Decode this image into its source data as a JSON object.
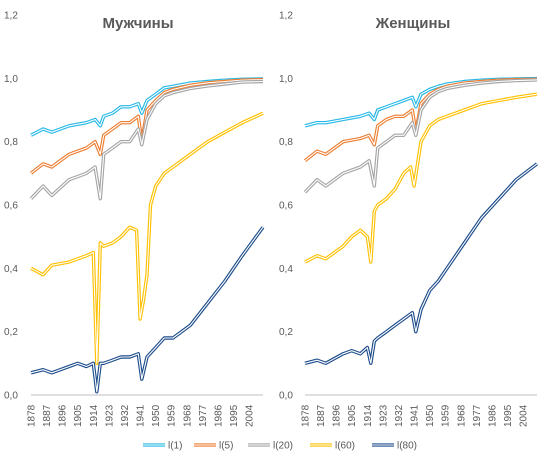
{
  "chart_data": {
    "type": "line",
    "legend_position": "bottom",
    "grid": false,
    "ylim": [
      0,
      1.2
    ],
    "yticks": [
      "0,0",
      "0,2",
      "0,4",
      "0,6",
      "0,8",
      "1,0",
      "1,2"
    ],
    "x_tick_labels": [
      "1878",
      "1887",
      "1896",
      "1905",
      "1914",
      "1923",
      "1932",
      "1941",
      "1950",
      "1959",
      "1968",
      "1977",
      "1986",
      "1995",
      "2004"
    ],
    "x_range": [
      1878,
      2012
    ],
    "series_meta": [
      {
        "name": "l(1)",
        "color": "#26B8E6"
      },
      {
        "name": "l(5)",
        "color": "#ED7D31"
      },
      {
        "name": "l(20)",
        "color": "#A5A5A5"
      },
      {
        "name": "l(60)",
        "color": "#FFC000"
      },
      {
        "name": "l(80)",
        "color": "#1F4E8C"
      }
    ],
    "panels": [
      {
        "title": "Мужчины",
        "series": [
          {
            "name": "l(1)",
            "x": [
              1878,
              1885,
              1890,
              1900,
              1910,
              1915,
              1918,
              1920,
              1925,
              1930,
              1935,
              1940,
              1942,
              1945,
              1950,
              1955,
              1960,
              1970,
              1980,
              1990,
              2000,
              2012
            ],
            "y": [
              0.82,
              0.84,
              0.83,
              0.85,
              0.86,
              0.87,
              0.85,
              0.88,
              0.89,
              0.91,
              0.91,
              0.92,
              0.89,
              0.93,
              0.95,
              0.97,
              0.975,
              0.985,
              0.99,
              0.994,
              0.997,
              0.998
            ]
          },
          {
            "name": "l(5)",
            "x": [
              1878,
              1885,
              1890,
              1900,
              1910,
              1915,
              1918,
              1920,
              1925,
              1930,
              1935,
              1940,
              1942,
              1945,
              1950,
              1955,
              1960,
              1970,
              1980,
              1990,
              2000,
              2012
            ],
            "y": [
              0.7,
              0.73,
              0.72,
              0.76,
              0.78,
              0.8,
              0.76,
              0.82,
              0.84,
              0.86,
              0.86,
              0.88,
              0.8,
              0.9,
              0.93,
              0.955,
              0.965,
              0.978,
              0.986,
              0.99,
              0.994,
              0.996
            ]
          },
          {
            "name": "l(20)",
            "x": [
              1878,
              1885,
              1890,
              1900,
              1910,
              1915,
              1918,
              1920,
              1925,
              1930,
              1935,
              1940,
              1942,
              1945,
              1950,
              1955,
              1960,
              1970,
              1980,
              1990,
              2000,
              2012
            ],
            "y": [
              0.62,
              0.66,
              0.63,
              0.68,
              0.7,
              0.72,
              0.62,
              0.76,
              0.78,
              0.8,
              0.8,
              0.84,
              0.79,
              0.87,
              0.92,
              0.945,
              0.955,
              0.968,
              0.976,
              0.982,
              0.988,
              0.99
            ]
          },
          {
            "name": "l(60)",
            "x": [
              1878,
              1885,
              1890,
              1900,
              1905,
              1910,
              1914,
              1916,
              1918,
              1920,
              1925,
              1930,
              1935,
              1939,
              1941,
              1943,
              1945,
              1947,
              1950,
              1955,
              1960,
              1970,
              1980,
              1990,
              2000,
              2012
            ],
            "y": [
              0.4,
              0.38,
              0.41,
              0.42,
              0.43,
              0.44,
              0.45,
              0.1,
              0.48,
              0.47,
              0.48,
              0.5,
              0.53,
              0.52,
              0.24,
              0.3,
              0.38,
              0.6,
              0.66,
              0.7,
              0.72,
              0.76,
              0.8,
              0.83,
              0.86,
              0.89
            ]
          },
          {
            "name": "l(80)",
            "x": [
              1878,
              1885,
              1890,
              1900,
              1905,
              1910,
              1914,
              1916,
              1918,
              1920,
              1925,
              1930,
              1935,
              1940,
              1942,
              1945,
              1950,
              1955,
              1960,
              1970,
              1980,
              1990,
              2000,
              2012
            ],
            "y": [
              0.07,
              0.08,
              0.07,
              0.09,
              0.1,
              0.09,
              0.1,
              0.01,
              0.1,
              0.1,
              0.11,
              0.12,
              0.12,
              0.13,
              0.05,
              0.12,
              0.15,
              0.18,
              0.18,
              0.22,
              0.29,
              0.36,
              0.44,
              0.53
            ]
          }
        ]
      },
      {
        "title": "Женщины",
        "series": [
          {
            "name": "l(1)",
            "x": [
              1878,
              1885,
              1890,
              1900,
              1910,
              1915,
              1918,
              1920,
              1925,
              1930,
              1935,
              1940,
              1942,
              1945,
              1950,
              1955,
              1960,
              1970,
              1980,
              1990,
              2000,
              2012
            ],
            "y": [
              0.85,
              0.86,
              0.86,
              0.87,
              0.88,
              0.89,
              0.87,
              0.9,
              0.91,
              0.92,
              0.93,
              0.94,
              0.91,
              0.95,
              0.965,
              0.975,
              0.982,
              0.99,
              0.994,
              0.997,
              0.998,
              0.999
            ]
          },
          {
            "name": "l(5)",
            "x": [
              1878,
              1885,
              1890,
              1900,
              1910,
              1915,
              1918,
              1920,
              1925,
              1930,
              1935,
              1940,
              1942,
              1945,
              1950,
              1955,
              1960,
              1970,
              1980,
              1990,
              2000,
              2012
            ],
            "y": [
              0.74,
              0.77,
              0.76,
              0.8,
              0.81,
              0.82,
              0.79,
              0.85,
              0.87,
              0.88,
              0.88,
              0.9,
              0.83,
              0.92,
              0.95,
              0.965,
              0.975,
              0.985,
              0.99,
              0.994,
              0.996,
              0.997
            ]
          },
          {
            "name": "l(20)",
            "x": [
              1878,
              1885,
              1890,
              1900,
              1910,
              1915,
              1918,
              1920,
              1925,
              1930,
              1935,
              1940,
              1942,
              1945,
              1950,
              1955,
              1960,
              1970,
              1980,
              1990,
              2000,
              2012
            ],
            "y": [
              0.64,
              0.68,
              0.66,
              0.7,
              0.72,
              0.74,
              0.66,
              0.78,
              0.8,
              0.82,
              0.82,
              0.86,
              0.82,
              0.9,
              0.94,
              0.958,
              0.968,
              0.978,
              0.985,
              0.99,
              0.993,
              0.995
            ]
          },
          {
            "name": "l(60)",
            "x": [
              1878,
              1885,
              1890,
              1900,
              1905,
              1910,
              1914,
              1916,
              1918,
              1920,
              1925,
              1930,
              1935,
              1939,
              1941,
              1945,
              1950,
              1955,
              1960,
              1970,
              1980,
              1990,
              2000,
              2012
            ],
            "y": [
              0.42,
              0.44,
              0.43,
              0.47,
              0.5,
              0.52,
              0.5,
              0.42,
              0.58,
              0.6,
              0.62,
              0.65,
              0.7,
              0.72,
              0.66,
              0.8,
              0.85,
              0.87,
              0.88,
              0.9,
              0.92,
              0.93,
              0.94,
              0.95
            ]
          },
          {
            "name": "l(80)",
            "x": [
              1878,
              1885,
              1890,
              1900,
              1905,
              1910,
              1914,
              1916,
              1918,
              1920,
              1925,
              1930,
              1935,
              1940,
              1942,
              1945,
              1950,
              1955,
              1960,
              1970,
              1980,
              1990,
              2000,
              2012
            ],
            "y": [
              0.1,
              0.11,
              0.1,
              0.13,
              0.14,
              0.13,
              0.15,
              0.1,
              0.17,
              0.18,
              0.2,
              0.22,
              0.24,
              0.26,
              0.2,
              0.27,
              0.33,
              0.36,
              0.4,
              0.48,
              0.56,
              0.62,
              0.68,
              0.73
            ]
          }
        ]
      }
    ]
  }
}
